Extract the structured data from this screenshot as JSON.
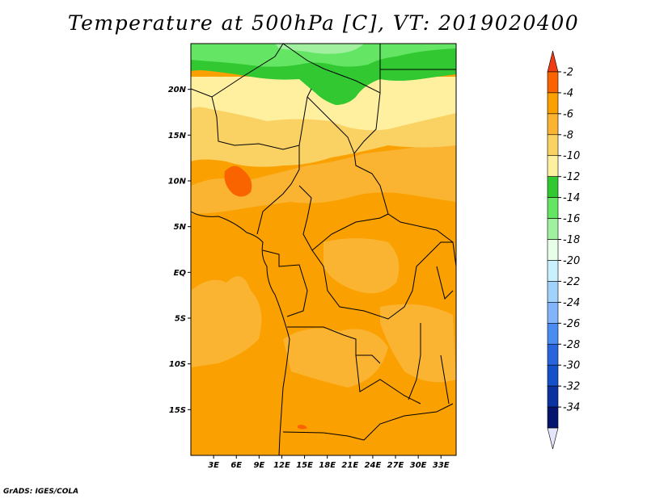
{
  "title": "Temperature at 500hPa [C], VT: 2019020400",
  "credit": "GrADS: IGES/COLA",
  "map": {
    "lon_range": [
      0,
      35
    ],
    "lat_range": [
      -20,
      25
    ],
    "lat_ticks": [
      {
        "value": 20,
        "label": "20N"
      },
      {
        "value": 15,
        "label": "15N"
      },
      {
        "value": 10,
        "label": "10N"
      },
      {
        "value": 5,
        "label": "5N"
      },
      {
        "value": 0,
        "label": "EQ"
      },
      {
        "value": -5,
        "label": "5S"
      },
      {
        "value": -10,
        "label": "10S"
      },
      {
        "value": -15,
        "label": "15S"
      }
    ],
    "lon_ticks": [
      {
        "value": 3,
        "label": "3E"
      },
      {
        "value": 6,
        "label": "6E"
      },
      {
        "value": 9,
        "label": "9E"
      },
      {
        "value": 12,
        "label": "12E"
      },
      {
        "value": 15,
        "label": "15E"
      },
      {
        "value": 18,
        "label": "18E"
      },
      {
        "value": 21,
        "label": "21E"
      },
      {
        "value": 24,
        "label": "24E"
      },
      {
        "value": 27,
        "label": "27E"
      },
      {
        "value": 30,
        "label": "30E"
      },
      {
        "value": 33,
        "label": "33E"
      }
    ]
  },
  "colorbar": {
    "labels": [
      "-2",
      "-4",
      "-6",
      "-8",
      "-10",
      "-12",
      "-14",
      "-16",
      "-18",
      "-20",
      "-22",
      "-24",
      "-26",
      "-28",
      "-30",
      "-32",
      "-34"
    ],
    "colors": [
      "#f03c14",
      "#fa6400",
      "#faa000",
      "#fab432",
      "#fad264",
      "#fff0a0",
      "#32c832",
      "#64e664",
      "#a0f0a0",
      "#e6ffe6",
      "#c8f0ff",
      "#a0d2fa",
      "#82b4fa",
      "#4b8cf0",
      "#2864dc",
      "#1450c8",
      "#0a32a0",
      "#05146e",
      "#e6e6fa"
    ]
  }
}
